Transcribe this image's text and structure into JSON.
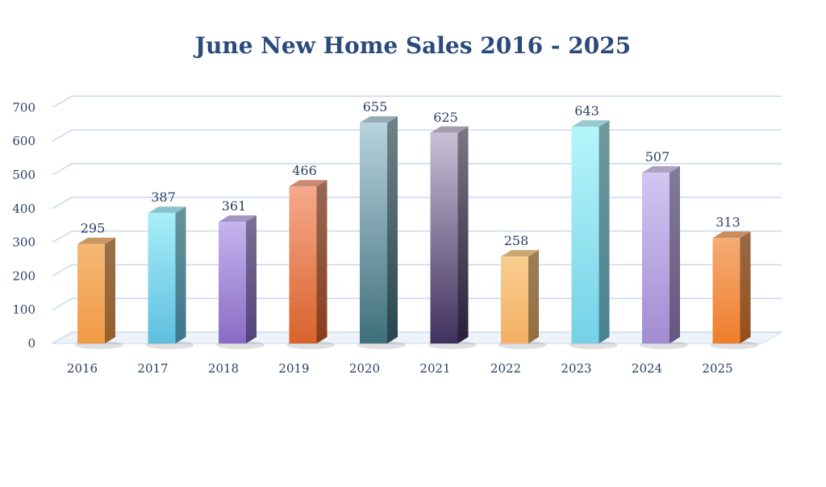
{
  "chart_data": {
    "type": "bar",
    "title": "June New Home Sales 2016 - 2025",
    "categories": [
      "2016",
      "2017",
      "2018",
      "2019",
      "2020",
      "2021",
      "2022",
      "2023",
      "2024",
      "2025"
    ],
    "values": [
      295,
      387,
      361,
      466,
      655,
      625,
      258,
      643,
      507,
      313
    ],
    "ylim": [
      0,
      700
    ],
    "yticks": [
      0,
      100,
      200,
      300,
      400,
      500,
      600,
      700
    ],
    "grid": true,
    "legend": "none",
    "bar_colors": [
      {
        "top": "#f5b877",
        "bottom": "#f09a45"
      },
      {
        "top": "#a8eef9",
        "bottom": "#5fbee0"
      },
      {
        "top": "#c5b4ee",
        "bottom": "#8a6bc4"
      },
      {
        "top": "#f5a98c",
        "bottom": "#d9622b"
      },
      {
        "top": "#b7d3dd",
        "bottom": "#3f6f7c"
      },
      {
        "top": "#c8c0d6",
        "bottom": "#40305e"
      },
      {
        "top": "#f9cd8f",
        "bottom": "#f4b064"
      },
      {
        "top": "#b6f6fb",
        "bottom": "#74d1e6"
      },
      {
        "top": "#d3c6f2",
        "bottom": "#a28bd1"
      },
      {
        "top": "#f5ac75",
        "bottom": "#ef7d2c"
      }
    ]
  }
}
